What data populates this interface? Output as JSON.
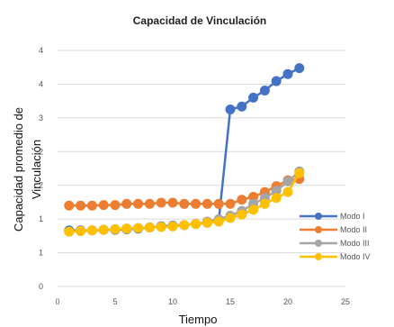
{
  "chart_data": {
    "type": "line",
    "title": "Capacidad de Vinculación",
    "xlabel": "Tiempo",
    "ylabel_lines": [
      "Capacidad promedio de",
      "Vinculación"
    ],
    "xlim": [
      0,
      25
    ],
    "ylim": [
      0,
      4
    ],
    "x_ticks": [
      "0",
      "5",
      "10",
      "15",
      "20",
      "25"
    ],
    "y_ticks": [
      "0",
      "1",
      "1",
      "2",
      "2",
      "3",
      "4",
      "4"
    ],
    "grid": "horizontal",
    "legend_position": "right",
    "x": [
      1,
      2,
      3,
      4,
      5,
      6,
      7,
      8,
      9,
      10,
      11,
      12,
      13,
      14,
      15,
      16,
      17,
      18,
      19,
      20,
      21
    ],
    "series": [
      {
        "name": "Modo I",
        "color": "#4472C4",
        "values": [
          0.95,
          0.95,
          0.95,
          0.96,
          0.96,
          0.97,
          0.98,
          1.0,
          1.02,
          1.03,
          1.04,
          1.06,
          1.08,
          1.12,
          3.0,
          3.05,
          3.2,
          3.32,
          3.48,
          3.6,
          3.7
        ]
      },
      {
        "name": "Modo II",
        "color": "#ED7D31",
        "values": [
          1.37,
          1.37,
          1.37,
          1.38,
          1.38,
          1.4,
          1.4,
          1.4,
          1.42,
          1.42,
          1.4,
          1.4,
          1.4,
          1.4,
          1.4,
          1.47,
          1.52,
          1.6,
          1.7,
          1.8,
          1.82
        ]
      },
      {
        "name": "Modo III",
        "color": "#A5A5A5",
        "values": [
          0.93,
          0.94,
          0.95,
          0.96,
          0.97,
          0.98,
          0.99,
          1.0,
          1.01,
          1.02,
          1.04,
          1.06,
          1.1,
          1.14,
          1.2,
          1.28,
          1.4,
          1.5,
          1.62,
          1.78,
          1.95
        ]
      },
      {
        "name": "Modo IV",
        "color": "#FFC000",
        "values": [
          0.93,
          0.94,
          0.95,
          0.96,
          0.97,
          0.98,
          0.99,
          1.0,
          1.01,
          1.02,
          1.04,
          1.06,
          1.08,
          1.1,
          1.16,
          1.22,
          1.3,
          1.4,
          1.5,
          1.6,
          1.92
        ]
      }
    ]
  }
}
